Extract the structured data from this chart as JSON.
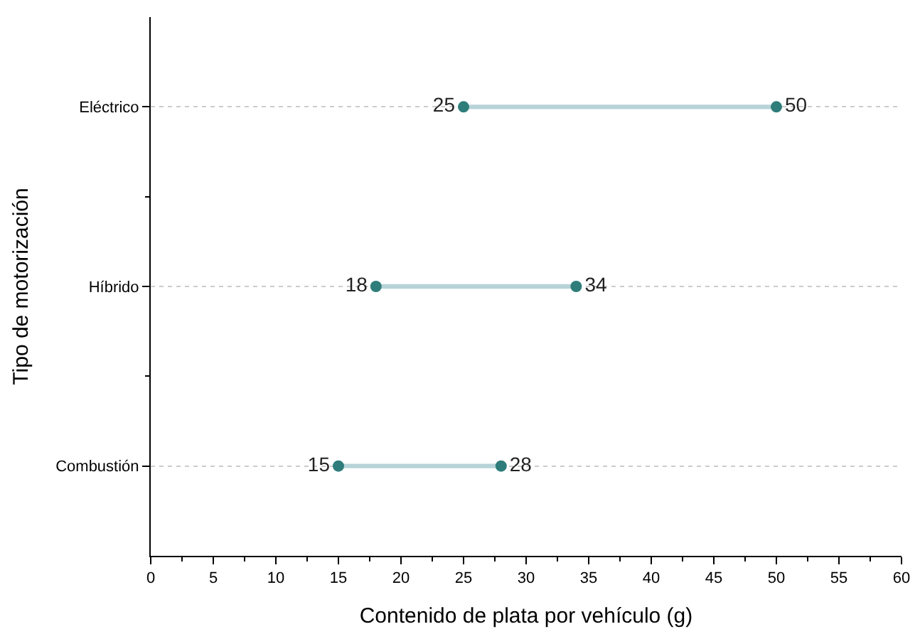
{
  "chart_data": {
    "type": "bar",
    "orientation": "horizontal",
    "xlabel": "Contenido de plata por vehículo (g)",
    "ylabel": "Tipo de motorización",
    "categories": [
      "Eléctrico",
      "Híbrido",
      "Combustión"
    ],
    "series": [
      {
        "color": "#b7d3d8",
        "base": [
          25,
          18,
          15
        ],
        "values": [
          25,
          16,
          13
        ]
      },
      {
        "type": "scatter",
        "color": "#2e7d7b",
        "values": [
          25,
          18,
          15
        ],
        "value_labels": [
          "25",
          "18",
          "15"
        ]
      },
      {
        "type": "scatter",
        "color": "#2e7d7b",
        "values": [
          50,
          34,
          28
        ],
        "value_labels": [
          "50",
          "34",
          "28"
        ]
      }
    ],
    "xlim": [
      0,
      60
    ],
    "xticks": [
      0,
      5,
      10,
      15,
      20,
      25,
      30,
      35,
      40,
      45,
      50,
      55,
      60
    ],
    "grid": "y",
    "marker": "circle"
  }
}
